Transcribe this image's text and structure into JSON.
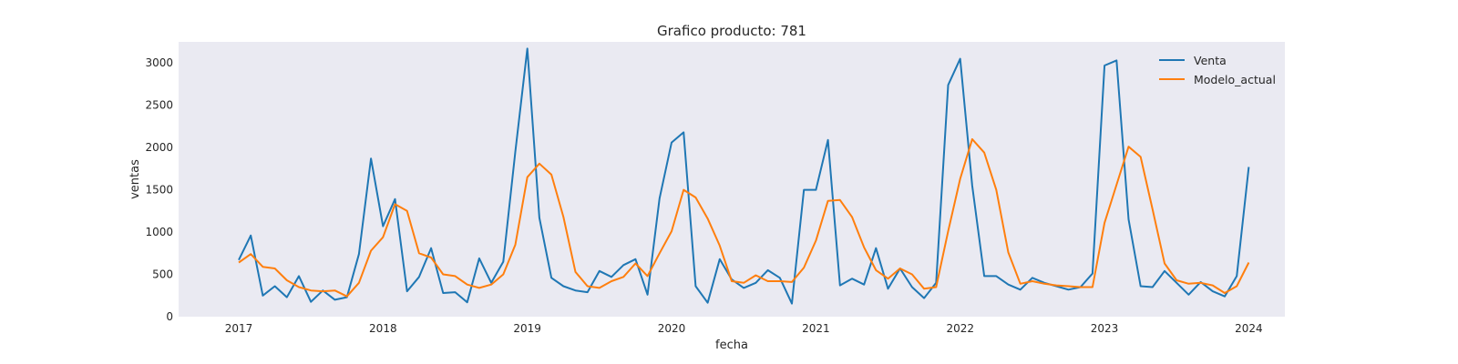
{
  "chart_data": {
    "type": "line",
    "title": "Grafico producto: 781",
    "xlabel": "fecha",
    "ylabel": "ventas",
    "x_ticks": [
      "2017",
      "2018",
      "2019",
      "2020",
      "2021",
      "2022",
      "2023",
      "2024"
    ],
    "y_ticks": [
      "0",
      "500",
      "1000",
      "1500",
      "2000",
      "2500",
      "3000"
    ],
    "ylim": [
      0,
      3250
    ],
    "xlim": [
      "2016-08",
      "2024-04"
    ],
    "grid": false,
    "legend_position": "top-right",
    "x": [
      "2017-01",
      "2017-02",
      "2017-03",
      "2017-04",
      "2017-05",
      "2017-06",
      "2017-07",
      "2017-08",
      "2017-09",
      "2017-10",
      "2017-11",
      "2017-12",
      "2018-01",
      "2018-02",
      "2018-03",
      "2018-04",
      "2018-05",
      "2018-06",
      "2018-07",
      "2018-08",
      "2018-09",
      "2018-10",
      "2018-11",
      "2018-12",
      "2019-01",
      "2019-02",
      "2019-03",
      "2019-04",
      "2019-05",
      "2019-06",
      "2019-07",
      "2019-08",
      "2019-09",
      "2019-10",
      "2019-11",
      "2019-12",
      "2020-01",
      "2020-02",
      "2020-03",
      "2020-04",
      "2020-05",
      "2020-06",
      "2020-07",
      "2020-08",
      "2020-09",
      "2020-10",
      "2020-11",
      "2020-12",
      "2021-01",
      "2021-02",
      "2021-03",
      "2021-04",
      "2021-05",
      "2021-06",
      "2021-07",
      "2021-08",
      "2021-09",
      "2021-10",
      "2021-11",
      "2021-12",
      "2022-01",
      "2022-02",
      "2022-03",
      "2022-04",
      "2022-05",
      "2022-06",
      "2022-07",
      "2022-08",
      "2022-09",
      "2022-10",
      "2022-11",
      "2022-12",
      "2023-01",
      "2023-02",
      "2023-03",
      "2023-04",
      "2023-05",
      "2023-06",
      "2023-07",
      "2023-08",
      "2023-09",
      "2023-10",
      "2023-11",
      "2023-12"
    ],
    "series": [
      {
        "name": "Venta",
        "color": "#1f77b4",
        "values": [
          670,
          960,
          250,
          360,
          230,
          480,
          175,
          310,
          200,
          230,
          740,
          1870,
          1070,
          1390,
          300,
          470,
          810,
          280,
          290,
          170,
          690,
          400,
          650,
          1950,
          3170,
          1170,
          460,
          360,
          310,
          290,
          540,
          470,
          610,
          680,
          260,
          1400,
          2060,
          2180,
          360,
          165,
          680,
          440,
          340,
          400,
          550,
          460,
          155,
          1500,
          1500,
          2090,
          370,
          450,
          380,
          810,
          330,
          570,
          350,
          220,
          400,
          2740,
          3050,
          1550,
          480,
          480,
          380,
          320,
          460,
          400,
          360,
          320,
          350,
          510,
          2970,
          3030,
          1150,
          360,
          350,
          540,
          400,
          260,
          410,
          300,
          240,
          480
        ]
      },
      {
        "name": "Modelo_actual",
        "color": "#ff7f0e",
        "values": [
          640,
          740,
          590,
          570,
          430,
          350,
          310,
          300,
          310,
          240,
          400,
          780,
          940,
          1330,
          1250,
          750,
          700,
          500,
          480,
          380,
          340,
          380,
          500,
          850,
          1650,
          1810,
          1680,
          1180,
          530,
          360,
          340,
          420,
          470,
          630,
          480,
          750,
          1010,
          1500,
          1410,
          1160,
          840,
          420,
          400,
          490,
          420,
          420,
          410,
          580,
          900,
          1370,
          1380,
          1180,
          820,
          550,
          450,
          570,
          500,
          330,
          350,
          1010,
          1630,
          2100,
          1940,
          1500,
          760,
          390,
          420,
          390,
          370,
          360,
          350,
          350,
          1110,
          1560,
          2010,
          1890,
          1270,
          630,
          430,
          390,
          400,
          370,
          280,
          360
        ]
      }
    ],
    "tail_point": {
      "Venta": 1770,
      "Modelo_actual": 640,
      "x": "2024-01"
    }
  }
}
